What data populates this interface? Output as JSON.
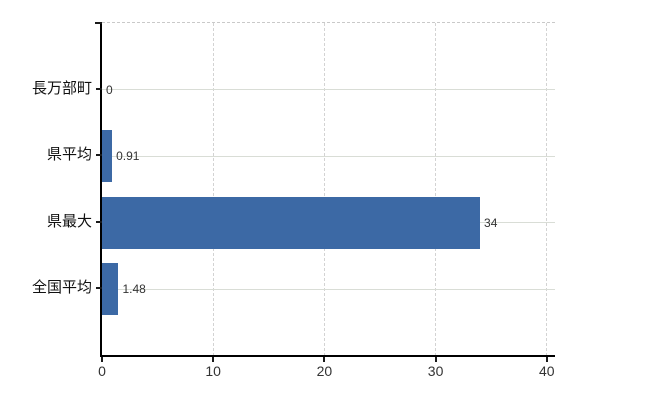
{
  "chart_data": {
    "type": "bar",
    "orientation": "horizontal",
    "title": "",
    "xlabel": "",
    "ylabel": "",
    "categories": [
      "長万部町",
      "県平均",
      "県最大",
      "全国平均"
    ],
    "values": [
      0,
      0.91,
      34,
      1.48
    ],
    "value_labels": [
      "0",
      "0.91",
      "34",
      "1.48"
    ],
    "x_ticks": [
      0,
      10,
      20,
      30,
      40
    ],
    "x_tick_labels": [
      "0",
      "10",
      "20",
      "30",
      "40"
    ],
    "xlim": [
      0,
      40.74
    ],
    "grid": "on",
    "legend": "none"
  },
  "colors": {
    "bar": "#3c69a5",
    "axis": "#000000",
    "grid_horizontal": "#d9ddd6",
    "grid_vertical": "#d3d3d3",
    "plot_top_border": "#c9c9c9",
    "value_text": "#333333",
    "tick_text": "#333333",
    "category_text": "#111111",
    "background": "#ffffff"
  }
}
